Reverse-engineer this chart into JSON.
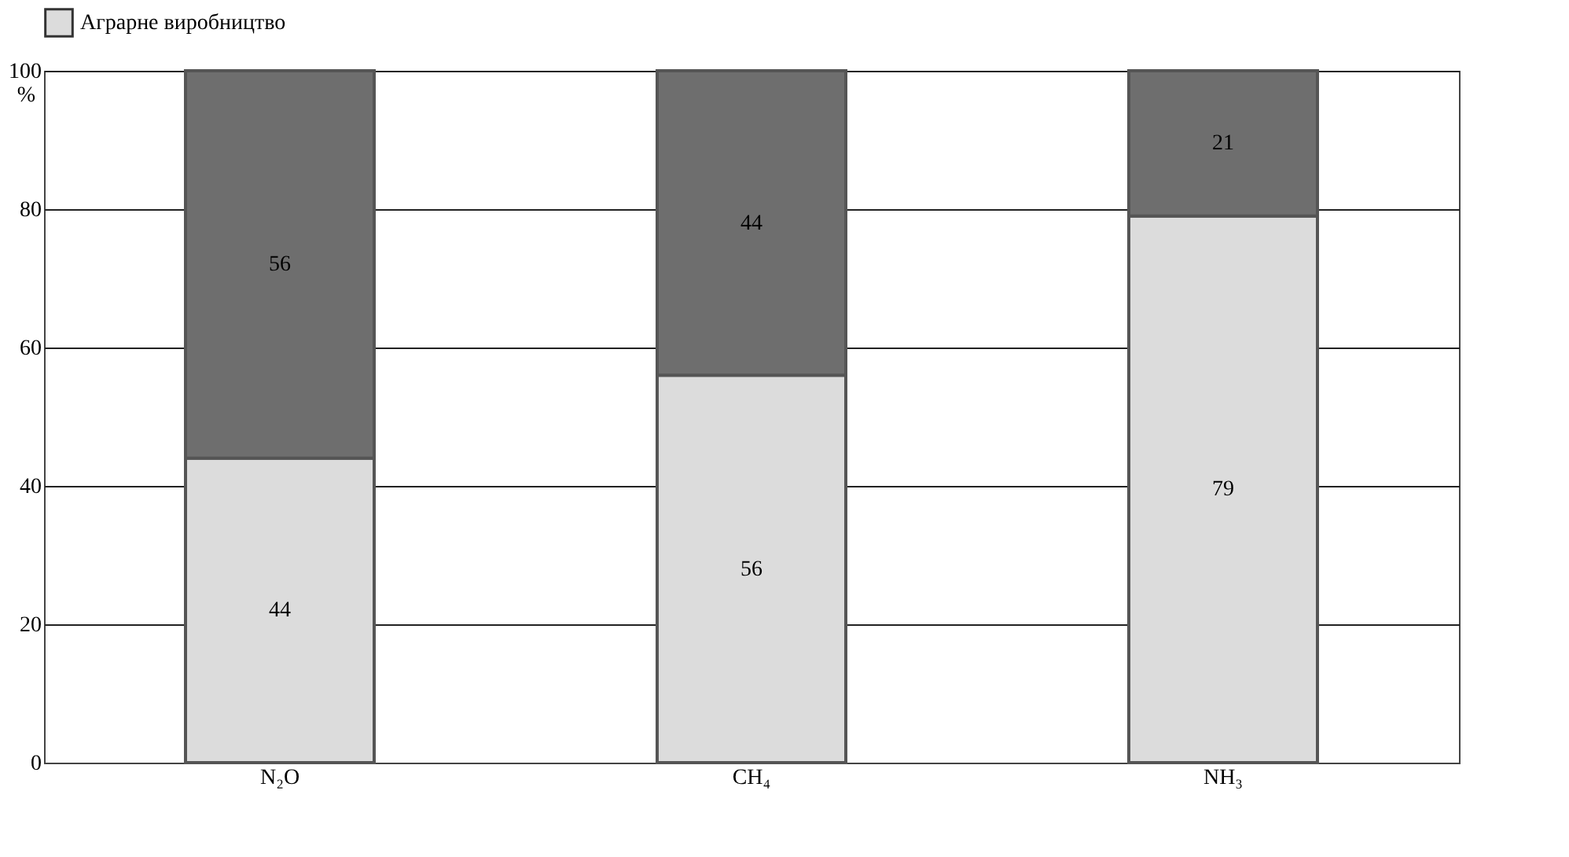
{
  "chart_data": {
    "type": "bar",
    "stacked": true,
    "categories": [
      "N₂O",
      "CH₄",
      "NH₃"
    ],
    "series": [
      {
        "name": "Аграрне виробництво",
        "color": "#dcdcdc",
        "values": [
          44,
          56,
          79
        ]
      },
      {
        "color": "#6e6e6e",
        "values": [
          56,
          44,
          21
        ]
      }
    ],
    "ylabel": "%",
    "ylim": [
      0,
      100
    ],
    "yticks": [
      0,
      20,
      40,
      60,
      80,
      100
    ],
    "grid": "y",
    "legend": "top",
    "data_labels": true
  }
}
